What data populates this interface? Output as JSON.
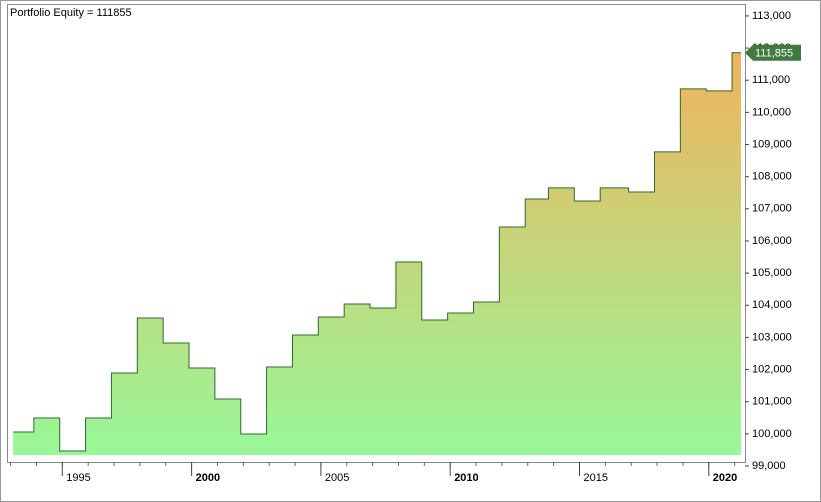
{
  "chart_data": {
    "type": "step-area",
    "title": "Portfolio Equity = 111855",
    "x": [
      1993.1,
      1993.9,
      1994.9,
      1995.9,
      1996.9,
      1997.9,
      1998.9,
      1999.9,
      2000.9,
      2001.9,
      2002.9,
      2003.9,
      2004.9,
      2005.9,
      2006.9,
      2007.9,
      2008.9,
      2009.9,
      2010.9,
      2011.9,
      2012.9,
      2013.8,
      2014.8,
      2015.8,
      2016.9,
      2017.9,
      2018.9,
      2019.9,
      2020.9
    ],
    "values": [
      100058,
      100494,
      99467,
      100494,
      101894,
      103605,
      102827,
      102049,
      101085,
      99996,
      102080,
      103076,
      103636,
      104040,
      103916,
      105347,
      103543,
      103760,
      104103,
      106436,
      107307,
      107650,
      107245,
      107650,
      107525,
      108770,
      110730,
      110668,
      111855
    ],
    "value_labels": [
      null,
      null,
      null,
      null,
      null,
      null,
      null,
      null,
      null,
      null,
      null,
      null,
      null,
      null,
      null,
      null,
      null,
      null,
      null,
      null,
      null,
      null,
      null,
      null,
      null,
      null,
      null,
      null,
      "111,855"
    ],
    "color": "#2f6a2f",
    "fill_bottom": "#98f898",
    "fill_top": "#f0b35e",
    "tag_color": "#3f7a3f",
    "xlim": [
      1992.9,
      2021.4
    ],
    "xticks": [
      1995,
      2000,
      2005,
      2010,
      2015,
      2020
    ],
    "ylim": [
      99000,
      113340
    ],
    "yticks": [
      {
        "value": 99000,
        "label": "99,000"
      },
      {
        "value": 100000,
        "label": "100,000"
      },
      {
        "value": 101000,
        "label": "101,000"
      },
      {
        "value": 102000,
        "label": "102,000"
      },
      {
        "value": 103000,
        "label": "103,000"
      },
      {
        "value": 104000,
        "label": "104,000"
      },
      {
        "value": 105000,
        "label": "105,000"
      },
      {
        "value": 106000,
        "label": "106,000"
      },
      {
        "value": 107000,
        "label": "107,000"
      },
      {
        "value": 108000,
        "label": "108,000"
      },
      {
        "value": 109000,
        "label": "109,000"
      },
      {
        "value": 110000,
        "label": "110,000"
      },
      {
        "value": 111000,
        "label": "111,000"
      },
      {
        "value": 112000,
        "label": "112,000"
      },
      {
        "value": 113000,
        "label": "113,000"
      }
    ]
  }
}
